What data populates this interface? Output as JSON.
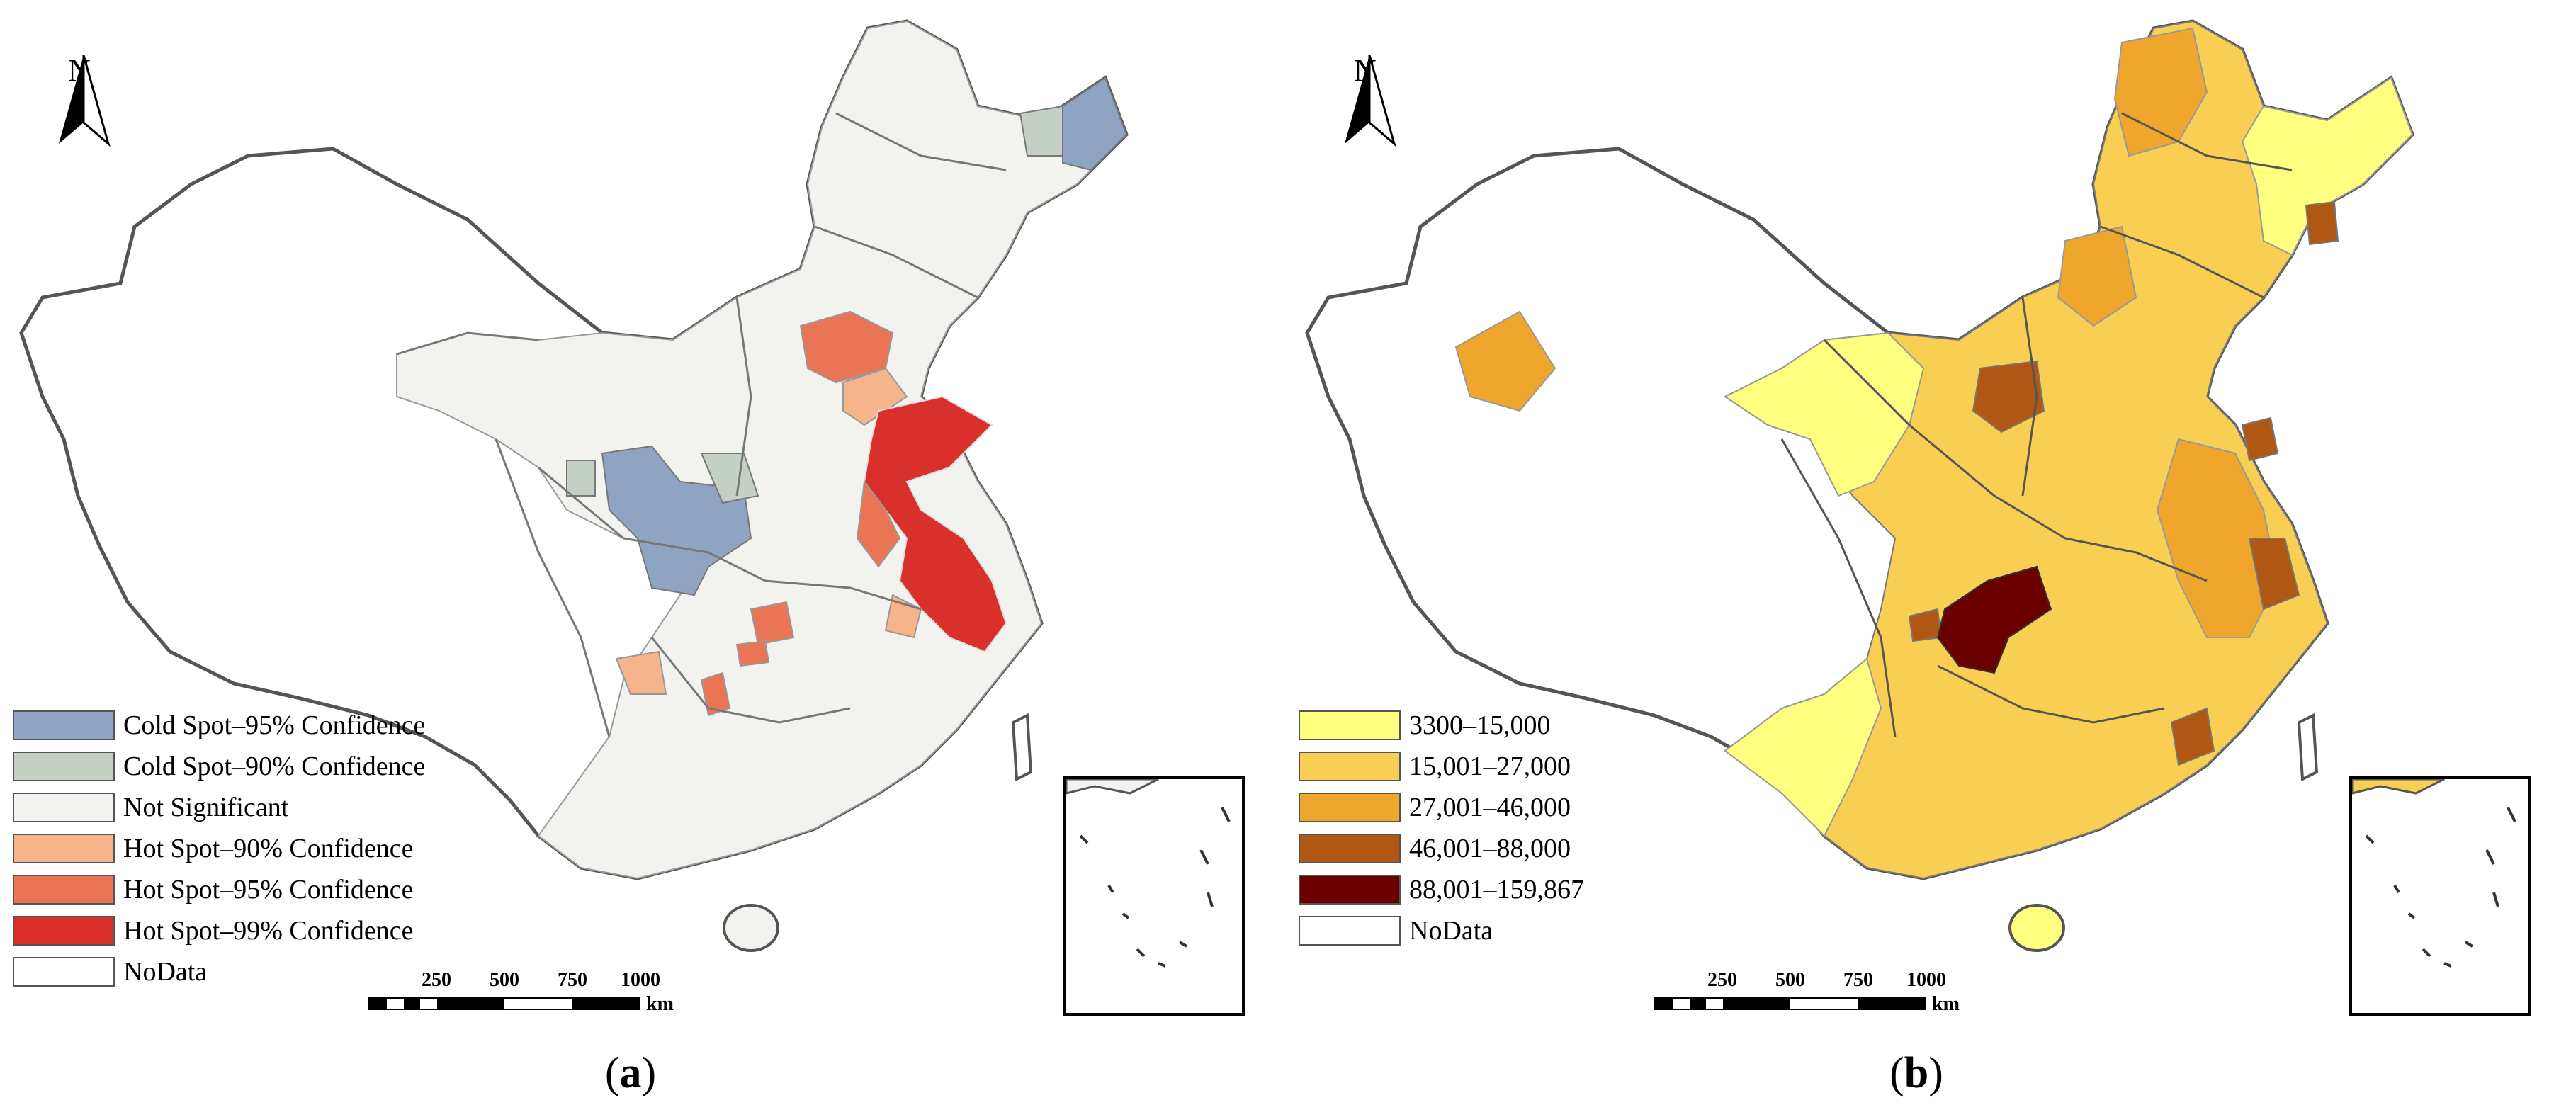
{
  "panels": [
    {
      "caption": "a",
      "north_label": "N",
      "legend": [
        {
          "label": "Cold Spot–95% Confidence",
          "color": "#8fa3c2"
        },
        {
          "label": "Cold Spot–90% Confidence",
          "color": "#c5d0c5"
        },
        {
          "label": "Not Significant",
          "color": "#f2f3ee"
        },
        {
          "label": "Hot Spot–90% Confidence",
          "color": "#f5b48a"
        },
        {
          "label": "Hot Spot–95% Confidence",
          "color": "#ea7555"
        },
        {
          "label": "Hot Spot–99% Confidence",
          "color": "#d9302c"
        },
        {
          "label": "NoData",
          "color": "#ffffff"
        }
      ],
      "scale": {
        "ticks": [
          "250",
          "500",
          "750",
          "1000"
        ],
        "unit": "km"
      }
    },
    {
      "caption": "b",
      "north_label": "N",
      "legend": [
        {
          "label": "3300–15,000",
          "color": "#ffff7f"
        },
        {
          "label": "15,001–27,000",
          "color": "#f9cf53"
        },
        {
          "label": "27,001–46,000",
          "color": "#efa62c"
        },
        {
          "label": "46,001–88,000",
          "color": "#b05813"
        },
        {
          "label": "88,001–159,867",
          "color": "#6b0000"
        },
        {
          "label": "NoData",
          "color": "#ffffff"
        }
      ],
      "scale": {
        "ticks": [
          "250",
          "500",
          "750",
          "1000"
        ],
        "unit": "km"
      }
    }
  ]
}
